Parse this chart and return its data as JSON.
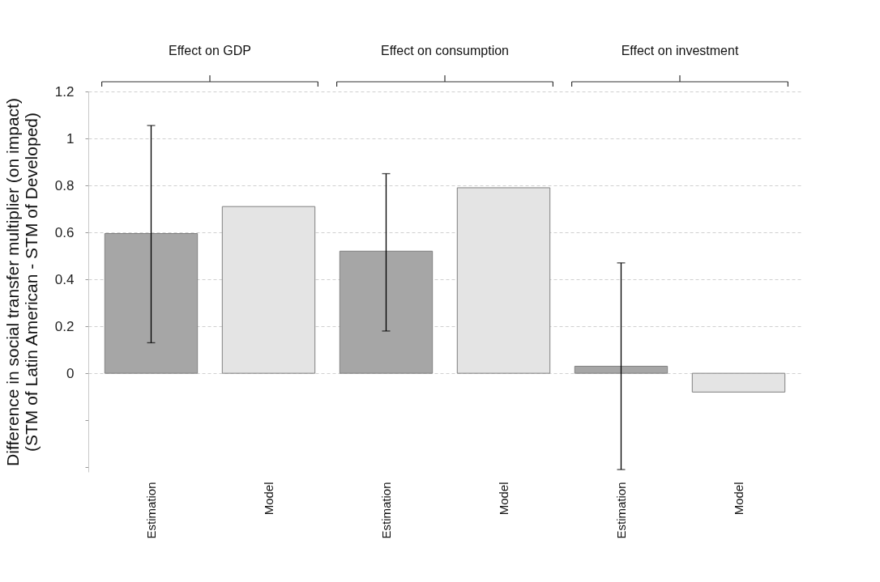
{
  "chart_data": {
    "type": "bar",
    "ylabel": "Difference in social transfer multiplier (on impact)\n(STM of Latin American  - STM of Developed)",
    "categories": [
      "Estimation",
      "Model",
      "Estimation",
      "Model",
      "Estimation",
      "Model"
    ],
    "values": [
      0.595,
      0.71,
      0.52,
      0.79,
      0.03,
      -0.08
    ],
    "colors": [
      "#a6a6a6",
      "#e4e4e4",
      "#a6a6a6",
      "#e4e4e4",
      "#a6a6a6",
      "#e4e4e4"
    ],
    "errors": [
      [
        0.13,
        1.055
      ],
      null,
      [
        0.18,
        0.85
      ],
      null,
      [
        -0.41,
        0.47
      ],
      null
    ],
    "annotations": [
      "Effect on GDP",
      "Effect on consumption",
      "Effect on investment"
    ],
    "ylim": [
      -0.42,
      1.2
    ],
    "yticks": [
      {
        "value": -0.4,
        "label": null
      },
      {
        "value": -0.2,
        "label": null
      },
      0,
      0.2,
      0.4,
      0.6,
      0.8,
      1,
      1.2
    ],
    "grid": "y"
  }
}
